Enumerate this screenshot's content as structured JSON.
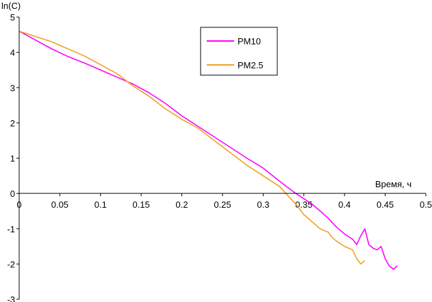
{
  "chart_data": {
    "type": "line",
    "title": "",
    "xlabel": "Время, ч",
    "ylabel": "ln(C)",
    "xlim": [
      0,
      0.5
    ],
    "ylim": [
      -3,
      5
    ],
    "xticks": [
      0,
      0.05,
      0.1,
      0.15,
      0.2,
      0.25,
      0.3,
      0.35,
      0.4,
      0.45,
      0.5
    ],
    "xtick_labels": [
      "0",
      "0.05",
      "0.1",
      "0.15",
      "0.2",
      "0.25",
      "0.3",
      "0.35",
      "0.4",
      "0.45",
      "0.5"
    ],
    "yticks": [
      -3,
      -2,
      -1,
      0,
      1,
      2,
      3,
      4,
      5
    ],
    "ytick_labels": [
      "-3",
      "-2",
      "-1",
      "0",
      "1",
      "2",
      "3",
      "4",
      "5"
    ],
    "grid": false,
    "legend": "top-center",
    "series": [
      {
        "name": "PM10",
        "color": "#ff00ff",
        "x": [
          0,
          0.02,
          0.04,
          0.06,
          0.08,
          0.1,
          0.12,
          0.14,
          0.16,
          0.18,
          0.2,
          0.22,
          0.24,
          0.26,
          0.28,
          0.3,
          0.32,
          0.34,
          0.36,
          0.37,
          0.38,
          0.39,
          0.4,
          0.41,
          0.415,
          0.42,
          0.425,
          0.43,
          0.435,
          0.44,
          0.445,
          0.45,
          0.455,
          0.46,
          0.465
        ],
        "y": [
          4.6,
          4.35,
          4.1,
          3.88,
          3.7,
          3.5,
          3.3,
          3.1,
          2.85,
          2.55,
          2.2,
          1.9,
          1.6,
          1.3,
          1.0,
          0.72,
          0.35,
          0.0,
          -0.3,
          -0.5,
          -0.7,
          -0.95,
          -1.15,
          -1.3,
          -1.45,
          -1.2,
          -1.0,
          -1.45,
          -1.55,
          -1.6,
          -1.5,
          -1.85,
          -2.05,
          -2.15,
          -2.05
        ]
      },
      {
        "name": "PM2.5",
        "color": "#f0a020",
        "x": [
          0,
          0.02,
          0.04,
          0.06,
          0.08,
          0.1,
          0.12,
          0.14,
          0.16,
          0.18,
          0.2,
          0.22,
          0.24,
          0.26,
          0.28,
          0.3,
          0.32,
          0.34,
          0.35,
          0.36,
          0.37,
          0.38,
          0.385,
          0.39,
          0.4,
          0.41,
          0.415,
          0.42,
          0.425
        ],
        "y": [
          4.6,
          4.45,
          4.3,
          4.1,
          3.9,
          3.65,
          3.4,
          3.05,
          2.75,
          2.4,
          2.1,
          1.85,
          1.5,
          1.15,
          0.8,
          0.5,
          0.2,
          -0.3,
          -0.6,
          -0.8,
          -1.0,
          -1.1,
          -1.25,
          -1.35,
          -1.5,
          -1.6,
          -1.85,
          -2.0,
          -1.9
        ]
      }
    ]
  }
}
